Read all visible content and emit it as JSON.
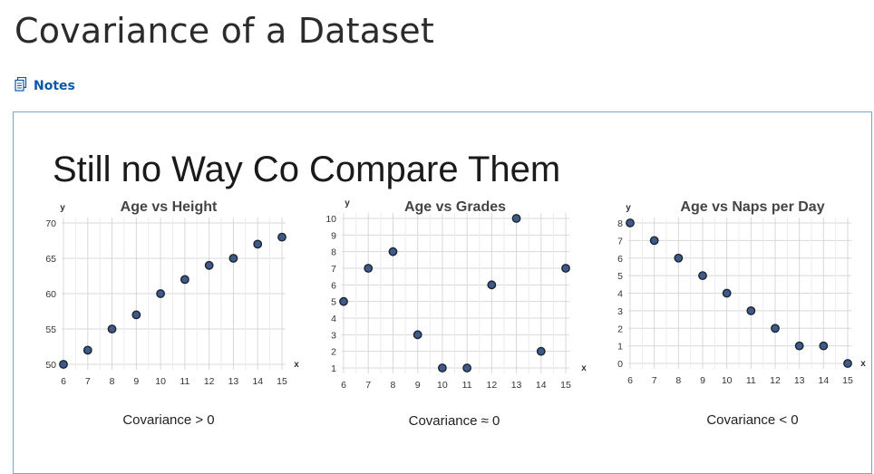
{
  "page": {
    "title": "Covariance of a Dataset"
  },
  "toolbar": {
    "notes_label": "Notes"
  },
  "slide": {
    "heading": "Still no Way Co Compare Them"
  },
  "chart_data": [
    {
      "type": "scatter",
      "title": "Age vs Height",
      "xlabel": "x",
      "ylabel": "y",
      "x": [
        6,
        7,
        8,
        9,
        10,
        11,
        12,
        13,
        14,
        15
      ],
      "y": [
        50,
        52,
        55,
        57,
        60,
        62,
        64,
        65,
        67,
        68
      ],
      "xlim": [
        6,
        15
      ],
      "ylim": [
        50,
        70
      ],
      "xticks": [
        "6",
        "7",
        "8",
        "9",
        "10",
        "11",
        "12",
        "13",
        "14",
        "15"
      ],
      "yticks": [
        "50",
        "55",
        "60",
        "65",
        "70"
      ],
      "grid": true,
      "caption": "Covariance > 0"
    },
    {
      "type": "scatter",
      "title": "Age vs Grades",
      "xlabel": "x",
      "ylabel": "y",
      "x": [
        6,
        7,
        8,
        9,
        10,
        11,
        12,
        13,
        14,
        15
      ],
      "y": [
        5,
        7,
        8,
        3,
        1,
        1,
        6,
        10,
        2,
        7
      ],
      "xlim": [
        6,
        15
      ],
      "ylim": [
        1,
        10
      ],
      "xticks": [
        "6",
        "7",
        "8",
        "9",
        "10",
        "11",
        "12",
        "13",
        "14",
        "15"
      ],
      "yticks": [
        "1",
        "2",
        "3",
        "4",
        "5",
        "6",
        "7",
        "8",
        "9",
        "10"
      ],
      "grid": true,
      "caption": "Covariance ≈ 0"
    },
    {
      "type": "scatter",
      "title": "Age vs Naps per Day",
      "xlabel": "x",
      "ylabel": "y",
      "x": [
        6,
        7,
        8,
        9,
        10,
        11,
        12,
        13,
        14,
        15
      ],
      "y": [
        8,
        7,
        6,
        5,
        4,
        3,
        2,
        1,
        1,
        0
      ],
      "xlim": [
        6,
        15
      ],
      "ylim": [
        0,
        8
      ],
      "xticks": [
        "6",
        "7",
        "8",
        "9",
        "10",
        "11",
        "12",
        "13",
        "14",
        "15"
      ],
      "yticks": [
        "0",
        "1",
        "2",
        "3",
        "4",
        "5",
        "6",
        "7",
        "8"
      ],
      "grid": true,
      "caption": "Covariance < 0"
    }
  ],
  "colors": {
    "point_fill": "#3e5a86",
    "point_stroke": "#1c2433",
    "grid": "#d8d8d8",
    "link": "#0b57a8",
    "frame": "#7fa2d6"
  }
}
